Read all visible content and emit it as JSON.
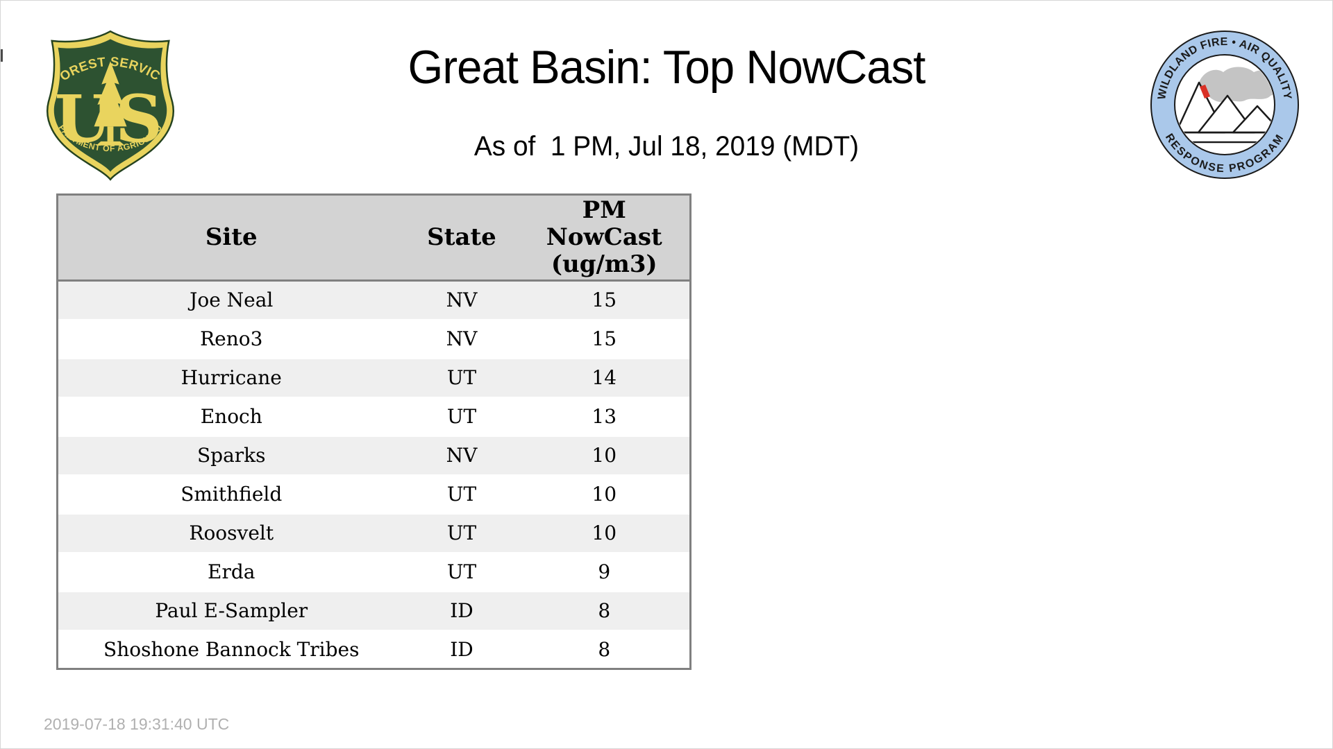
{
  "page": {
    "title": "Great Basin: Top NowCast",
    "subtitle": "As of  1 PM, Jul 18, 2019 (MDT)",
    "footer_timestamp": "2019-07-18 19:31:40 UTC"
  },
  "logos": {
    "forest_service": {
      "arc_top": "FOREST SERVICE",
      "monogram_u": "U",
      "monogram_s": "S",
      "arc_bottom": "DEPARTMENT OF AGRICULTURE",
      "colors": {
        "green": "#2d5231",
        "gold": "#e9d45e",
        "outline": "#24421f"
      }
    },
    "wfaqrp": {
      "arc_top": "WILDLAND FIRE • AIR QUALITY",
      "arc_bottom": "RESPONSE PROGRAM",
      "colors": {
        "ring_blue": "#aac8ea",
        "smoke_gray": "#c4c4c4",
        "flame_red": "#d93025",
        "outline": "#1a1a1a"
      }
    }
  },
  "table": {
    "columns": {
      "site": "Site",
      "state": "State",
      "pm_lines": [
        "PM",
        "NowCast",
        "(ug/m3)"
      ]
    },
    "rows": [
      [
        "Joe Neal",
        "NV",
        "15"
      ],
      [
        "Reno3",
        "NV",
        "15"
      ],
      [
        "Hurricane",
        "UT",
        "14"
      ],
      [
        "Enoch",
        "UT",
        "13"
      ],
      [
        "Sparks",
        "NV",
        "10"
      ],
      [
        "Smithfield",
        "UT",
        "10"
      ],
      [
        "Roosvelt",
        "UT",
        "10"
      ],
      [
        "Erda",
        "UT",
        "9"
      ],
      [
        "Paul E-Sampler",
        "ID",
        "8"
      ],
      [
        "Shoshone Bannock Tribes",
        "ID",
        "8"
      ]
    ],
    "colors": {
      "header_bg": "#d3d3d3",
      "row_alt_bg": "#efefef",
      "border": "#808080"
    }
  }
}
